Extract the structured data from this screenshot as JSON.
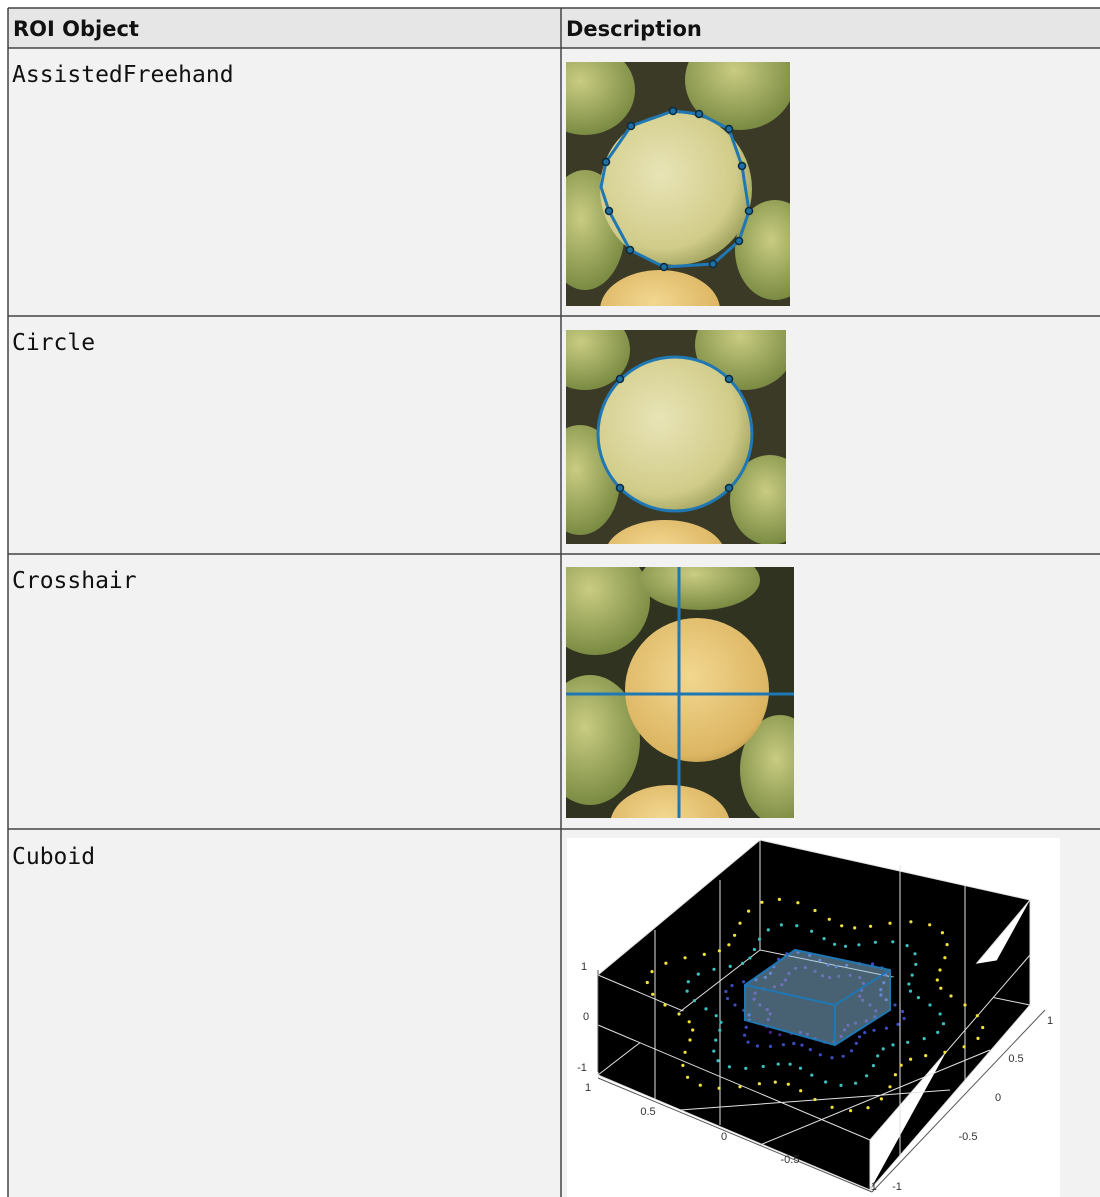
{
  "table": {
    "headers": [
      "ROI Object",
      "Description"
    ],
    "rows": [
      [
        "AssistedFreehand"
      ],
      [
        "Circle"
      ],
      [
        "Crosshair"
      ],
      [
        "Cuboid"
      ]
    ]
  },
  "cuboid_plot": {
    "z_tick_labels": [
      "1",
      "0",
      "-1"
    ],
    "x_tick_labels": [
      "1",
      "0.5",
      "0",
      "-0.5",
      "-1"
    ],
    "y_tick_labels": [
      "1",
      "0.5",
      "0",
      "-0.5",
      "-1"
    ]
  }
}
